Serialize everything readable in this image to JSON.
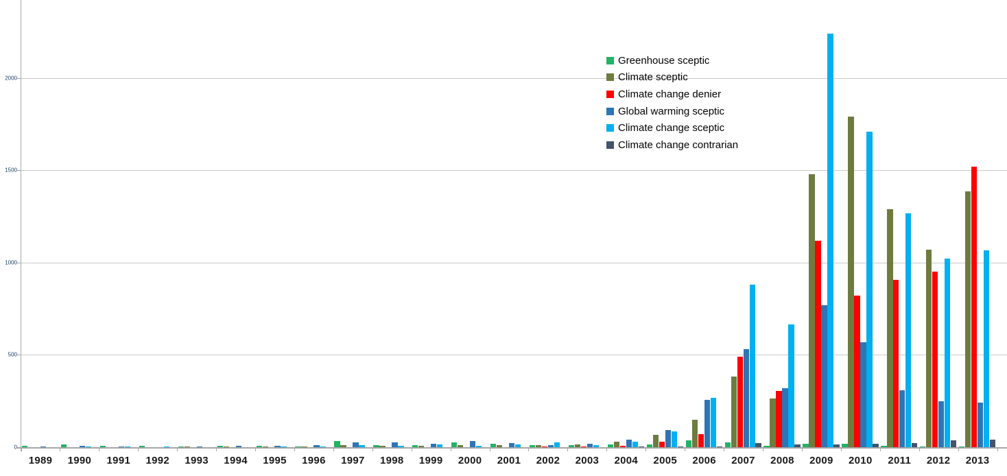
{
  "chart_data": {
    "type": "bar",
    "title": "",
    "xlabel": "",
    "ylabel": "",
    "grid": true,
    "legend_position": "upper-center-right",
    "y_ticks": [
      0,
      500,
      1000,
      1500,
      2000
    ],
    "ylim": [
      0,
      2420
    ],
    "categories": [
      "1989",
      "1990",
      "1991",
      "1992",
      "1993",
      "1994",
      "1995",
      "1996",
      "1997",
      "1998",
      "1999",
      "2000",
      "2001",
      "2002",
      "2003",
      "2004",
      "2005",
      "2006",
      "2007",
      "2008",
      "2009",
      "2010",
      "2011",
      "2012",
      "2013"
    ],
    "series": [
      {
        "name": "Greenhouse sceptic",
        "color": "#22b366",
        "values": [
          6,
          15,
          6,
          6,
          5,
          7,
          7,
          3,
          33,
          12,
          10,
          27,
          19,
          12,
          12,
          15,
          16,
          37,
          27,
          9,
          20,
          19,
          7,
          5,
          5
        ]
      },
      {
        "name": "Climate sceptic",
        "color": "#6e7b3f",
        "values": [
          0,
          0,
          0,
          0,
          2,
          2,
          2,
          5,
          10,
          6,
          6,
          12,
          12,
          12,
          16,
          31,
          66,
          149,
          382,
          265,
          1480,
          1790,
          1290,
          1070,
          1385
        ]
      },
      {
        "name": "Climate change denier",
        "color": "#fe0000",
        "values": [
          0,
          0,
          0,
          0,
          0,
          0,
          0,
          0,
          0,
          0,
          0,
          0,
          0,
          4,
          4,
          9,
          28,
          71,
          490,
          306,
          1120,
          820,
          905,
          950,
          1520
        ]
      },
      {
        "name": "Global warming sceptic",
        "color": "#2e75b6",
        "values": [
          2,
          6,
          2,
          0,
          2,
          7,
          7,
          10,
          27,
          25,
          17,
          35,
          22,
          12,
          19,
          40,
          93,
          256,
          533,
          321,
          770,
          570,
          310,
          250,
          240
        ]
      },
      {
        "name": "Climate change sceptic",
        "color": "#00b0f0",
        "values": [
          0,
          2,
          2,
          2,
          0,
          0,
          3,
          2,
          10,
          7,
          15,
          9,
          15,
          25,
          12,
          30,
          87,
          269,
          880,
          665,
          2240,
          1710,
          1265,
          1020,
          1065
        ]
      },
      {
        "name": "Climate change contrarian",
        "color": "#44546a",
        "values": [
          0,
          0,
          0,
          0,
          0,
          0,
          0,
          0,
          0,
          0,
          0,
          0,
          0,
          0,
          0,
          2,
          2,
          3,
          22,
          15,
          15,
          20,
          21,
          37,
          40
        ]
      }
    ]
  },
  "layout_colors": {
    "background": "#ffffff",
    "gridline": "#c9c9c9",
    "axis": "#a6a6a6",
    "y_label_text": "#17375d",
    "x_label_text": "#1a1a1a"
  }
}
